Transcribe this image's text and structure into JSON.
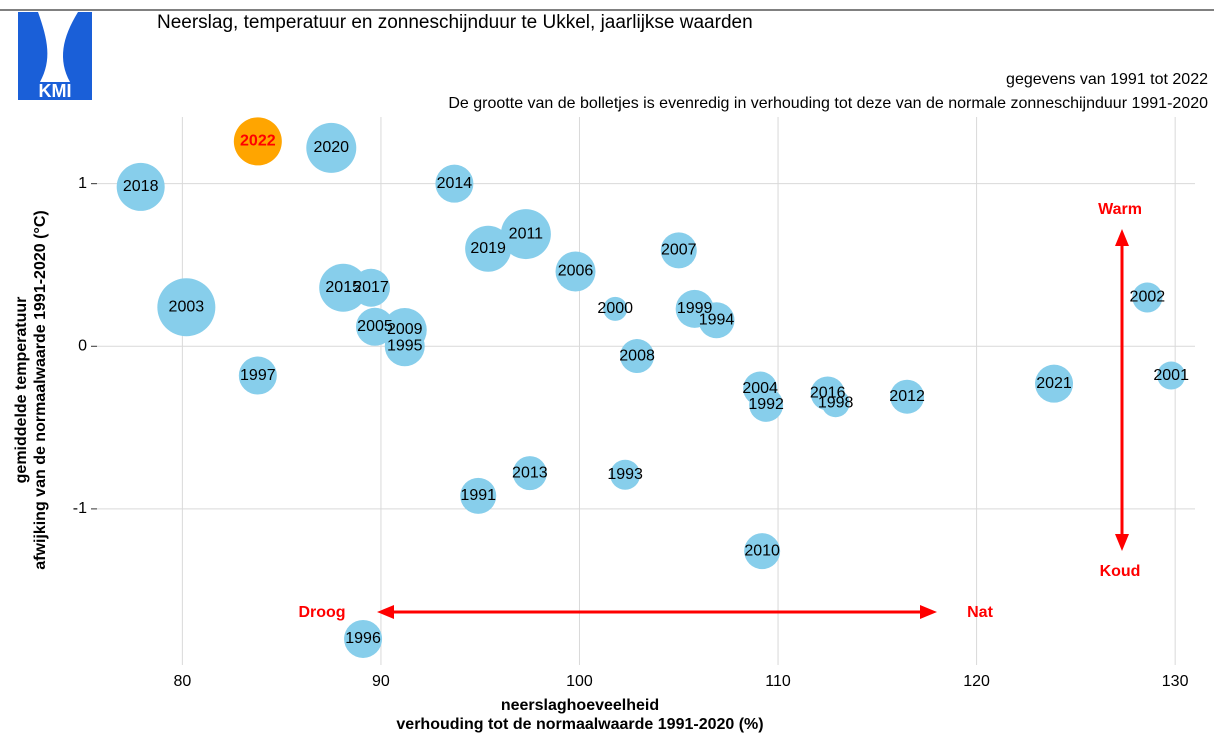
{
  "logo_text": "KMI",
  "chart_data": {
    "type": "bubble",
    "title": "Neerslag, temperatuur en zonneschijnduur te Ukkel, jaarlijkse waarden",
    "subtitle": "gegevens van 1991 tot 2022",
    "subtitle2": "De grootte van de bolletjes is evenredig in verhouding tot deze van de normale zonneschijnduur 1991-2020",
    "xlabel": [
      "neerslaghoeveelheid",
      "verhouding tot de normaalwaarde 1991-2020 (%)"
    ],
    "ylabel": [
      "gemiddelde temperatuur",
      "afwijking van de normaalwaarde 1991-2020 (°C)"
    ],
    "annotations": {
      "warm": "Warm",
      "cold": "Koud",
      "dry": "Droog",
      "wet": "Nat"
    },
    "labels": [
      "1991",
      "1992",
      "1993",
      "1994",
      "1995",
      "1996",
      "1997",
      "1998",
      "1999",
      "2000",
      "2001",
      "2002",
      "2003",
      "2004",
      "2005",
      "2006",
      "2007",
      "2008",
      "2009",
      "2010",
      "2011",
      "2012",
      "2013",
      "2014",
      "2015",
      "2016",
      "2017",
      "2018",
      "2019",
      "2020",
      "2021",
      "2022"
    ],
    "x": [
      94.9,
      109.4,
      102.3,
      106.9,
      91.2,
      89.1,
      83.8,
      112.9,
      105.8,
      101.8,
      129.8,
      128.6,
      80.2,
      109.1,
      89.7,
      99.8,
      105.0,
      102.9,
      91.2,
      109.2,
      97.3,
      116.5,
      97.5,
      93.7,
      88.1,
      112.5,
      89.5,
      77.9,
      95.4,
      87.5,
      123.9,
      83.8
    ],
    "values": [
      -0.92,
      -0.36,
      -0.79,
      0.16,
      0.0,
      -1.8,
      -0.18,
      -0.35,
      0.23,
      0.23,
      -0.18,
      0.3,
      0.24,
      -0.26,
      0.12,
      0.46,
      0.59,
      -0.06,
      0.1,
      -1.26,
      0.69,
      -0.31,
      -0.78,
      1.0,
      0.36,
      -0.29,
      0.36,
      0.98,
      0.6,
      1.22,
      -0.23,
      1.26
    ],
    "sizes": [
      90,
      85,
      75,
      90,
      100,
      95,
      95,
      70,
      95,
      60,
      70,
      75,
      145,
      85,
      95,
      100,
      90,
      85,
      110,
      90,
      125,
      85,
      85,
      95,
      120,
      85,
      95,
      120,
      115,
      125,
      95,
      120
    ],
    "point_colors": [
      "#87ceeb",
      "#87ceeb",
      "#87ceeb",
      "#87ceeb",
      "#87ceeb",
      "#87ceeb",
      "#87ceeb",
      "#87ceeb",
      "#87ceeb",
      "#87ceeb",
      "#87ceeb",
      "#87ceeb",
      "#87ceeb",
      "#87ceeb",
      "#87ceeb",
      "#87ceeb",
      "#87ceeb",
      "#87ceeb",
      "#87ceeb",
      "#87ceeb",
      "#87ceeb",
      "#87ceeb",
      "#87ceeb",
      "#87ceeb",
      "#87ceeb",
      "#87ceeb",
      "#87ceeb",
      "#87ceeb",
      "#87ceeb",
      "#87ceeb",
      "#87ceeb",
      "#ffa500"
    ],
    "label_colors": [
      "#000",
      "#000",
      "#000",
      "#000",
      "#000",
      "#000",
      "#000",
      "#000",
      "#000",
      "#000",
      "#000",
      "#000",
      "#000",
      "#000",
      "#000",
      "#000",
      "#000",
      "#000",
      "#000",
      "#000",
      "#000",
      "#000",
      "#000",
      "#000",
      "#000",
      "#000",
      "#000",
      "#000",
      "#000",
      "#000",
      "#000",
      "#ff0000"
    ],
    "xlim": [
      75.7,
      131
    ],
    "xticks": [
      80,
      90,
      100,
      110,
      120,
      130
    ],
    "ylim": [
      -1.96,
      1.41
    ],
    "yticks": [
      -1,
      0,
      1
    ],
    "grid": true
  }
}
